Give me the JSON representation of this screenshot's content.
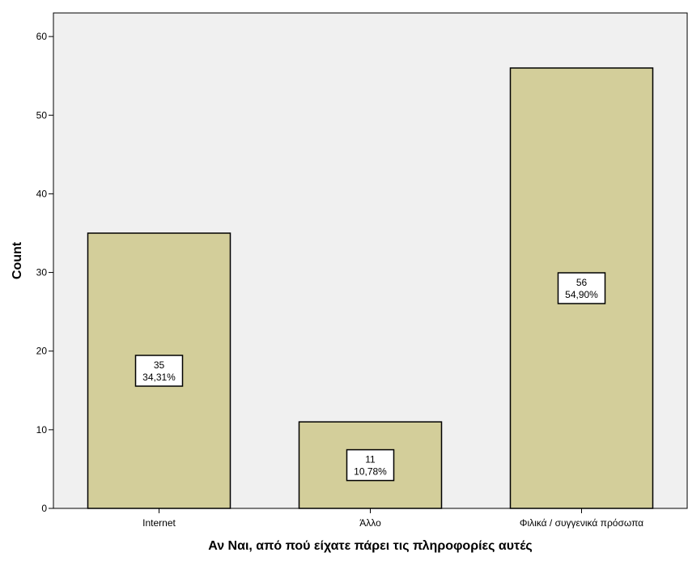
{
  "chart_data": {
    "type": "bar",
    "categories": [
      "Internet",
      "Άλλο",
      "Φιλικά / συγγενικά πρόσωπα"
    ],
    "values": [
      35,
      11,
      56
    ],
    "data_labels": [
      {
        "count": "35",
        "percent": "34,31%"
      },
      {
        "count": "11",
        "percent": "10,78%"
      },
      {
        "count": "56",
        "percent": "54,90%"
      }
    ],
    "xlabel": "Αν Ναι, από πού είχατε πάρει τις πληροφορίες αυτές",
    "ylabel": "Count",
    "ylim": [
      0,
      63
    ],
    "yticks": [
      0,
      10,
      20,
      30,
      40,
      50,
      60
    ],
    "grid": false,
    "colors": {
      "bar_fill": "#D3CE9A",
      "bar_stroke": "#000000",
      "plot_background": "#F0F0F0",
      "axis": "#000000"
    }
  }
}
